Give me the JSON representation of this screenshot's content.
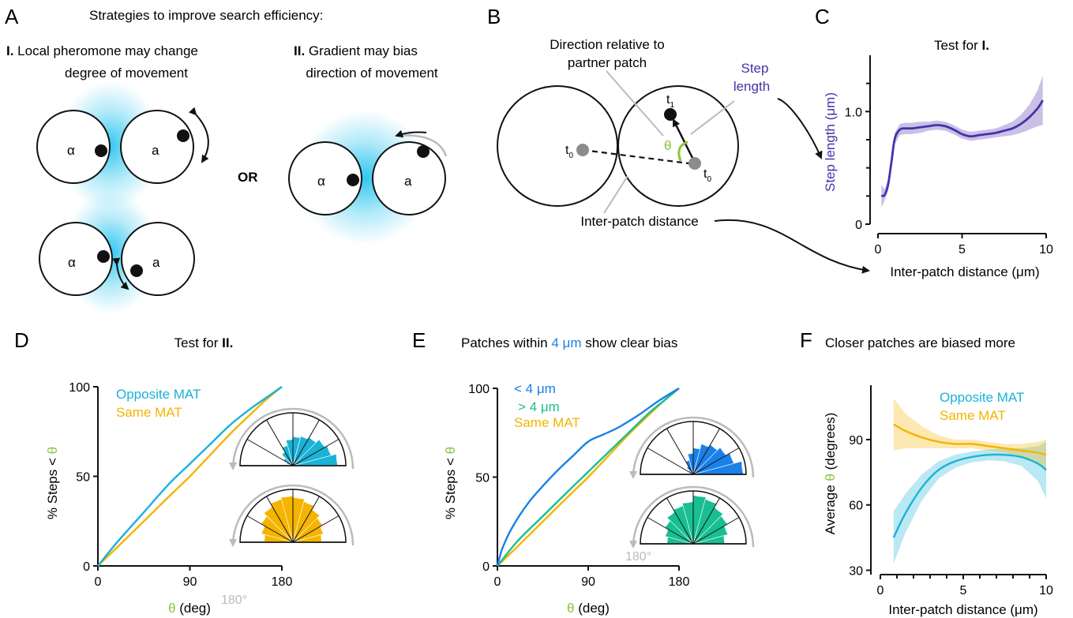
{
  "panel_labels": [
    "A",
    "B",
    "C",
    "D",
    "E",
    "F"
  ],
  "panel_a": {
    "title": "Strategies to improve search efficiency:",
    "strategy1_prefix": "I.",
    "strategy1_line1": " Local pheromone may change",
    "strategy1_line2": "degree of movement",
    "strategy2_prefix": "II.",
    "strategy2_line1": " Gradient may bias",
    "strategy2_line2": "direction of movement",
    "or_label": "OR",
    "alpha": "α",
    "a": "a"
  },
  "panel_b": {
    "direction_line1": "Direction relative to",
    "direction_line2": "partner patch",
    "step_line1": "Step",
    "step_line2": "length",
    "theta": "θ",
    "t_label": "t",
    "sub0": "0",
    "sub1": "1",
    "inter_patch": "Inter-patch distance"
  },
  "colors": {
    "opposite": "#1ab2d6",
    "same": "#f5b400",
    "lt4": "#1a80ea",
    "gt4": "#17bf92",
    "step": "#4a2fa8",
    "theta_green": "#8dc43d",
    "grey_arrow": "#bbbbbb",
    "glow": "#27c4ee"
  },
  "chart_data": [
    {
      "panel": "C",
      "type": "line",
      "title_prefix": "Test for ",
      "title_bold": "I.",
      "xlabel": "Inter-patch distance (μm)",
      "ylabel": "Step length (μm)",
      "xlim": [
        0,
        10
      ],
      "ylim": [
        0,
        1.5
      ],
      "xticks": [
        0,
        5,
        10
      ],
      "yticks": [
        0,
        1.0
      ],
      "ytick_labels": [
        "0",
        "1.0"
      ],
      "series": [
        {
          "key": "step",
          "x": [
            0.2,
            0.4,
            0.6,
            0.8,
            1.0,
            1.3,
            1.6,
            2.0,
            2.5,
            3.0,
            3.5,
            4.0,
            4.5,
            5.0,
            5.5,
            6.0,
            6.5,
            7.0,
            7.5,
            8.0,
            8.5,
            9.0,
            9.5,
            9.8
          ],
          "y": [
            0.25,
            0.26,
            0.35,
            0.55,
            0.76,
            0.84,
            0.85,
            0.85,
            0.86,
            0.87,
            0.88,
            0.87,
            0.84,
            0.8,
            0.78,
            0.79,
            0.8,
            0.81,
            0.83,
            0.85,
            0.89,
            0.95,
            1.03,
            1.1
          ],
          "band": [
            0.1,
            0.05,
            0.05,
            0.05,
            0.05,
            0.05,
            0.05,
            0.05,
            0.05,
            0.04,
            0.04,
            0.04,
            0.04,
            0.04,
            0.04,
            0.04,
            0.04,
            0.04,
            0.05,
            0.06,
            0.08,
            0.11,
            0.16,
            0.22
          ]
        }
      ]
    },
    {
      "panel": "D",
      "type": "line",
      "title_prefix": "Test for ",
      "title_bold": "II.",
      "xlabel": "θ (deg)",
      "ylabel": "% Steps < θ",
      "xlim": [
        0,
        180
      ],
      "ylim": [
        0,
        100
      ],
      "xticks": [
        0,
        90,
        180
      ],
      "yticks": [
        0,
        50,
        100
      ],
      "rose_label": "180°",
      "series": [
        {
          "name": "Opposite MAT",
          "key": "opposite",
          "x": [
            0,
            20,
            45,
            70,
            90,
            110,
            130,
            150,
            165,
            180
          ],
          "y": [
            0,
            14,
            30,
            46,
            57,
            68,
            79,
            88,
            94,
            100
          ]
        },
        {
          "name": "Same MAT",
          "key": "same",
          "x": [
            0,
            20,
            45,
            70,
            90,
            110,
            130,
            150,
            165,
            180
          ],
          "y": [
            0,
            11,
            25,
            39,
            50,
            62,
            74,
            85,
            93,
            100
          ]
        }
      ],
      "roses": [
        {
          "key": "opposite",
          "values": [
            0.85,
            0.75,
            0.7,
            0.62,
            0.58,
            0.55,
            0.5,
            0.4,
            0.3,
            0.2,
            0.12,
            0.08
          ]
        },
        {
          "key": "same",
          "values": [
            0.55,
            0.6,
            0.65,
            0.72,
            0.8,
            0.85,
            0.88,
            0.85,
            0.78,
            0.7,
            0.62,
            0.55
          ]
        }
      ]
    },
    {
      "panel": "E",
      "type": "line",
      "title_prefix": "Patches within ",
      "title_highlight": "4 μm",
      "title_suffix": " show clear bias",
      "xlabel": "θ (deg)",
      "ylabel": "% Steps < θ",
      "xlim": [
        0,
        180
      ],
      "ylim": [
        0,
        100
      ],
      "xticks": [
        0,
        90,
        180
      ],
      "yticks": [
        0,
        50,
        100
      ],
      "rose_label": "180°",
      "series": [
        {
          "name": "< 4 μm",
          "key": "lt4",
          "x": [
            0,
            5,
            15,
            30,
            45,
            60,
            75,
            90,
            105,
            120,
            140,
            160,
            180
          ],
          "y": [
            0,
            10,
            22,
            35,
            45,
            54,
            62,
            70,
            74,
            78,
            85,
            93,
            100
          ]
        },
        {
          "name": "> 4 μm",
          "key": "gt4",
          "x": [
            0,
            20,
            45,
            70,
            90,
            110,
            130,
            150,
            165,
            180
          ],
          "y": [
            0,
            14,
            28,
            42,
            53,
            64,
            75,
            86,
            93,
            100
          ]
        },
        {
          "name": "Same MAT",
          "key": "same",
          "x": [
            0,
            20,
            45,
            70,
            90,
            110,
            130,
            150,
            165,
            180
          ],
          "y": [
            0,
            11,
            25,
            39,
            50,
            62,
            74,
            85,
            93,
            100
          ]
        }
      ],
      "roses": [
        {
          "key": "lt4",
          "values": [
            0.95,
            0.8,
            0.72,
            0.65,
            0.6,
            0.5,
            0.4,
            0.28,
            0.18,
            0.1,
            0.05,
            0.03
          ]
        },
        {
          "key": "gt4",
          "values": [
            0.6,
            0.68,
            0.75,
            0.8,
            0.88,
            0.92,
            0.8,
            0.75,
            0.7,
            0.62,
            0.55,
            0.5
          ]
        }
      ]
    },
    {
      "panel": "F",
      "type": "line",
      "title": "Closer patches are biased more",
      "xlabel": "Inter-patch distance (μm)",
      "ylabel_prefix": "Average ",
      "ylabel_theta": "θ",
      "ylabel_suffix": " (degrees)",
      "xlim": [
        0,
        10
      ],
      "ylim": [
        28,
        115
      ],
      "xticks": [
        0,
        5,
        10
      ],
      "yticks": [
        30,
        60,
        90
      ],
      "series": [
        {
          "name": "Opposite MAT",
          "key": "opposite",
          "x": [
            0.8,
            1.5,
            2.5,
            3.5,
            4.5,
            5.5,
            6.5,
            7.5,
            8.5,
            9.5,
            10
          ],
          "y": [
            45,
            56,
            68,
            76,
            80,
            82,
            83,
            83,
            82,
            79,
            76
          ],
          "band": [
            12,
            9,
            6,
            4,
            3,
            2.5,
            2.5,
            3,
            4,
            8,
            13
          ]
        },
        {
          "name": "Same MAT",
          "key": "same",
          "x": [
            0.8,
            1.5,
            2.5,
            3.5,
            4.5,
            5.5,
            6.5,
            7.5,
            8.5,
            9.5,
            10
          ],
          "y": [
            97,
            94,
            91,
            89,
            88,
            88,
            87,
            86,
            85,
            84,
            83
          ],
          "band": [
            12,
            8,
            5,
            3,
            2,
            2,
            2,
            2,
            3,
            5,
            7
          ]
        }
      ]
    }
  ]
}
